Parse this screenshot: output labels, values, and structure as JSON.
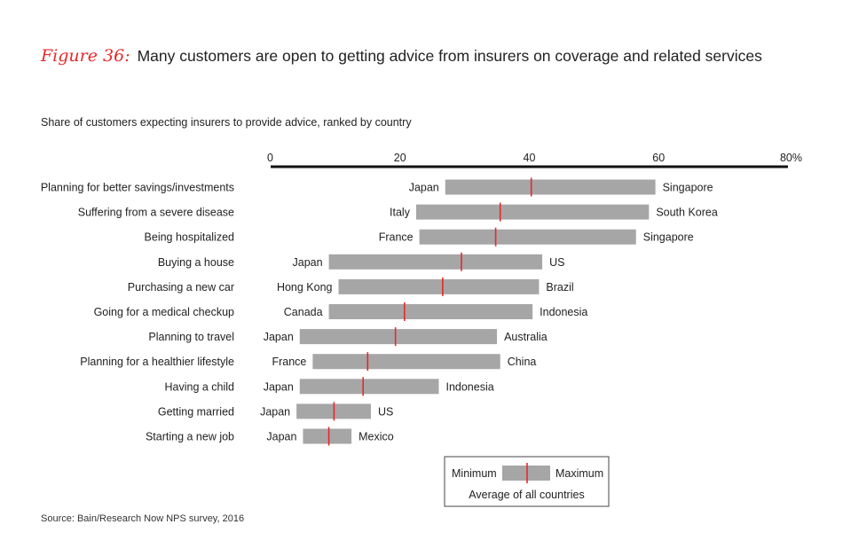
{
  "figure": {
    "label": "Figure 36:",
    "title": "Many customers are open to getting advice from insurers on coverage and related services"
  },
  "subtitle": "Share of customers expecting insurers to provide advice, ranked by country",
  "source": "Source: Bain/Research Now NPS survey, 2016",
  "colors": {
    "bar": "#a6a6a6",
    "average": "#e8282b",
    "axis": "#111111",
    "text": "#222222"
  },
  "legend": {
    "minimum": "Minimum",
    "maximum": "Maximum",
    "average": "Average of all countries"
  },
  "chart_data": {
    "type": "bar",
    "orientation": "horizontal-range",
    "xlim": [
      0,
      80
    ],
    "ticks": [
      0,
      20,
      40,
      60,
      80
    ],
    "tick_labels": [
      "0",
      "20",
      "40",
      "60",
      "80%"
    ],
    "axis_position": "top",
    "grid": false,
    "legend_position": "bottom-right",
    "rows": [
      {
        "label": "Planning for better savings/investments",
        "min": 27,
        "max": 59.5,
        "avg": 40.3,
        "min_country": "Japan",
        "max_country": "Singapore"
      },
      {
        "label": "Suffering from a severe disease",
        "min": 22.5,
        "max": 58.5,
        "avg": 35.5,
        "min_country": "Italy",
        "max_country": "South Korea"
      },
      {
        "label": "Being hospitalized",
        "min": 23,
        "max": 56.5,
        "avg": 34.8,
        "min_country": "France",
        "max_country": "Singapore"
      },
      {
        "label": "Buying a house",
        "min": 9,
        "max": 42,
        "avg": 29.5,
        "min_country": "Japan",
        "max_country": "US"
      },
      {
        "label": "Purchasing a new car",
        "min": 10.5,
        "max": 41.5,
        "avg": 26.6,
        "min_country": "Hong Kong",
        "max_country": "Brazil"
      },
      {
        "label": "Going for a medical checkup",
        "min": 9,
        "max": 40.5,
        "avg": 20.7,
        "min_country": "Canada",
        "max_country": "Indonesia"
      },
      {
        "label": "Planning to travel",
        "min": 4.5,
        "max": 35,
        "avg": 19.3,
        "min_country": "Japan",
        "max_country": "Australia"
      },
      {
        "label": "Planning for a healthier lifestyle",
        "min": 6.5,
        "max": 35.5,
        "avg": 15,
        "min_country": "France",
        "max_country": "China"
      },
      {
        "label": "Having a child",
        "min": 4.5,
        "max": 26,
        "avg": 14.3,
        "min_country": "Japan",
        "max_country": "Indonesia"
      },
      {
        "label": "Getting married",
        "min": 4,
        "max": 15.5,
        "avg": 9.8,
        "min_country": "Japan",
        "max_country": "US"
      },
      {
        "label": "Starting a new job",
        "min": 5,
        "max": 12.5,
        "avg": 9,
        "min_country": "Japan",
        "max_country": "Mexico"
      }
    ]
  }
}
